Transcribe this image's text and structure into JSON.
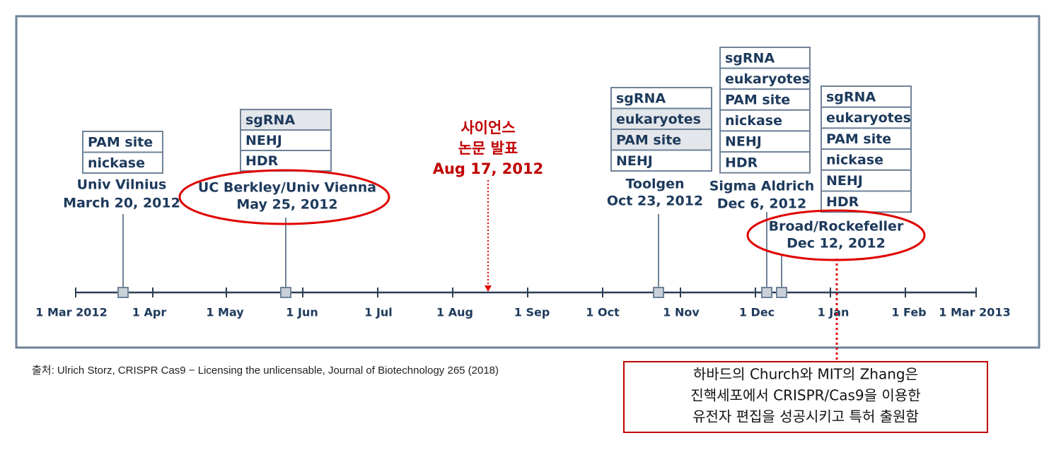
{
  "axis": {
    "ticks": [
      "1 Mar 2012",
      "1 Apr",
      "1 May",
      "1 Jun",
      "1 Jul",
      "1 Aug",
      "1 Sep",
      "1 Oct",
      "1 Nov",
      "1 Dec",
      "1 Jan",
      "1 Feb",
      "1 Mar 2013"
    ]
  },
  "events": [
    {
      "rows": [
        "PAM site",
        "nickase"
      ],
      "name": "Univ Vilnius",
      "date": "March 20, 2012"
    },
    {
      "rows": [
        "sgRNA",
        "NEHJ",
        "HDR"
      ],
      "name": "UC Berkley/Univ Vienna",
      "date": "May 25, 2012"
    },
    {
      "rows": [
        "sgRNA",
        "eukaryotes",
        "PAM site",
        "NEHJ"
      ],
      "name": "Toolgen",
      "date": "Oct 23, 2012"
    },
    {
      "rows": [
        "sgRNA",
        "eukaryotes",
        "PAM site",
        "nickase",
        "NEHJ",
        "HDR"
      ],
      "name": "Sigma Aldrich",
      "date": "Dec 6, 2012"
    },
    {
      "rows": [
        "sgRNA",
        "eukaryotes",
        "PAM site",
        "nickase",
        "NEHJ",
        "HDR"
      ],
      "name": "Broad/Rockefeller",
      "date": "Dec 12, 2012"
    }
  ],
  "science": {
    "lines": [
      "사이언스",
      "논문 발표",
      "Aug 17, 2012"
    ]
  },
  "source": "출처: Ulrich Storz, CRISPR Cas9 − Licensing the unlicensable, Journal of Biotechnology 265 (2018)",
  "note": {
    "lines": [
      "하바드의 Church와 MIT의 Zhang은",
      "진핵세포에서 CRISPR/Cas9을 이용한",
      "유전자 편집을 성공시키고 특허 출원함"
    ]
  }
}
